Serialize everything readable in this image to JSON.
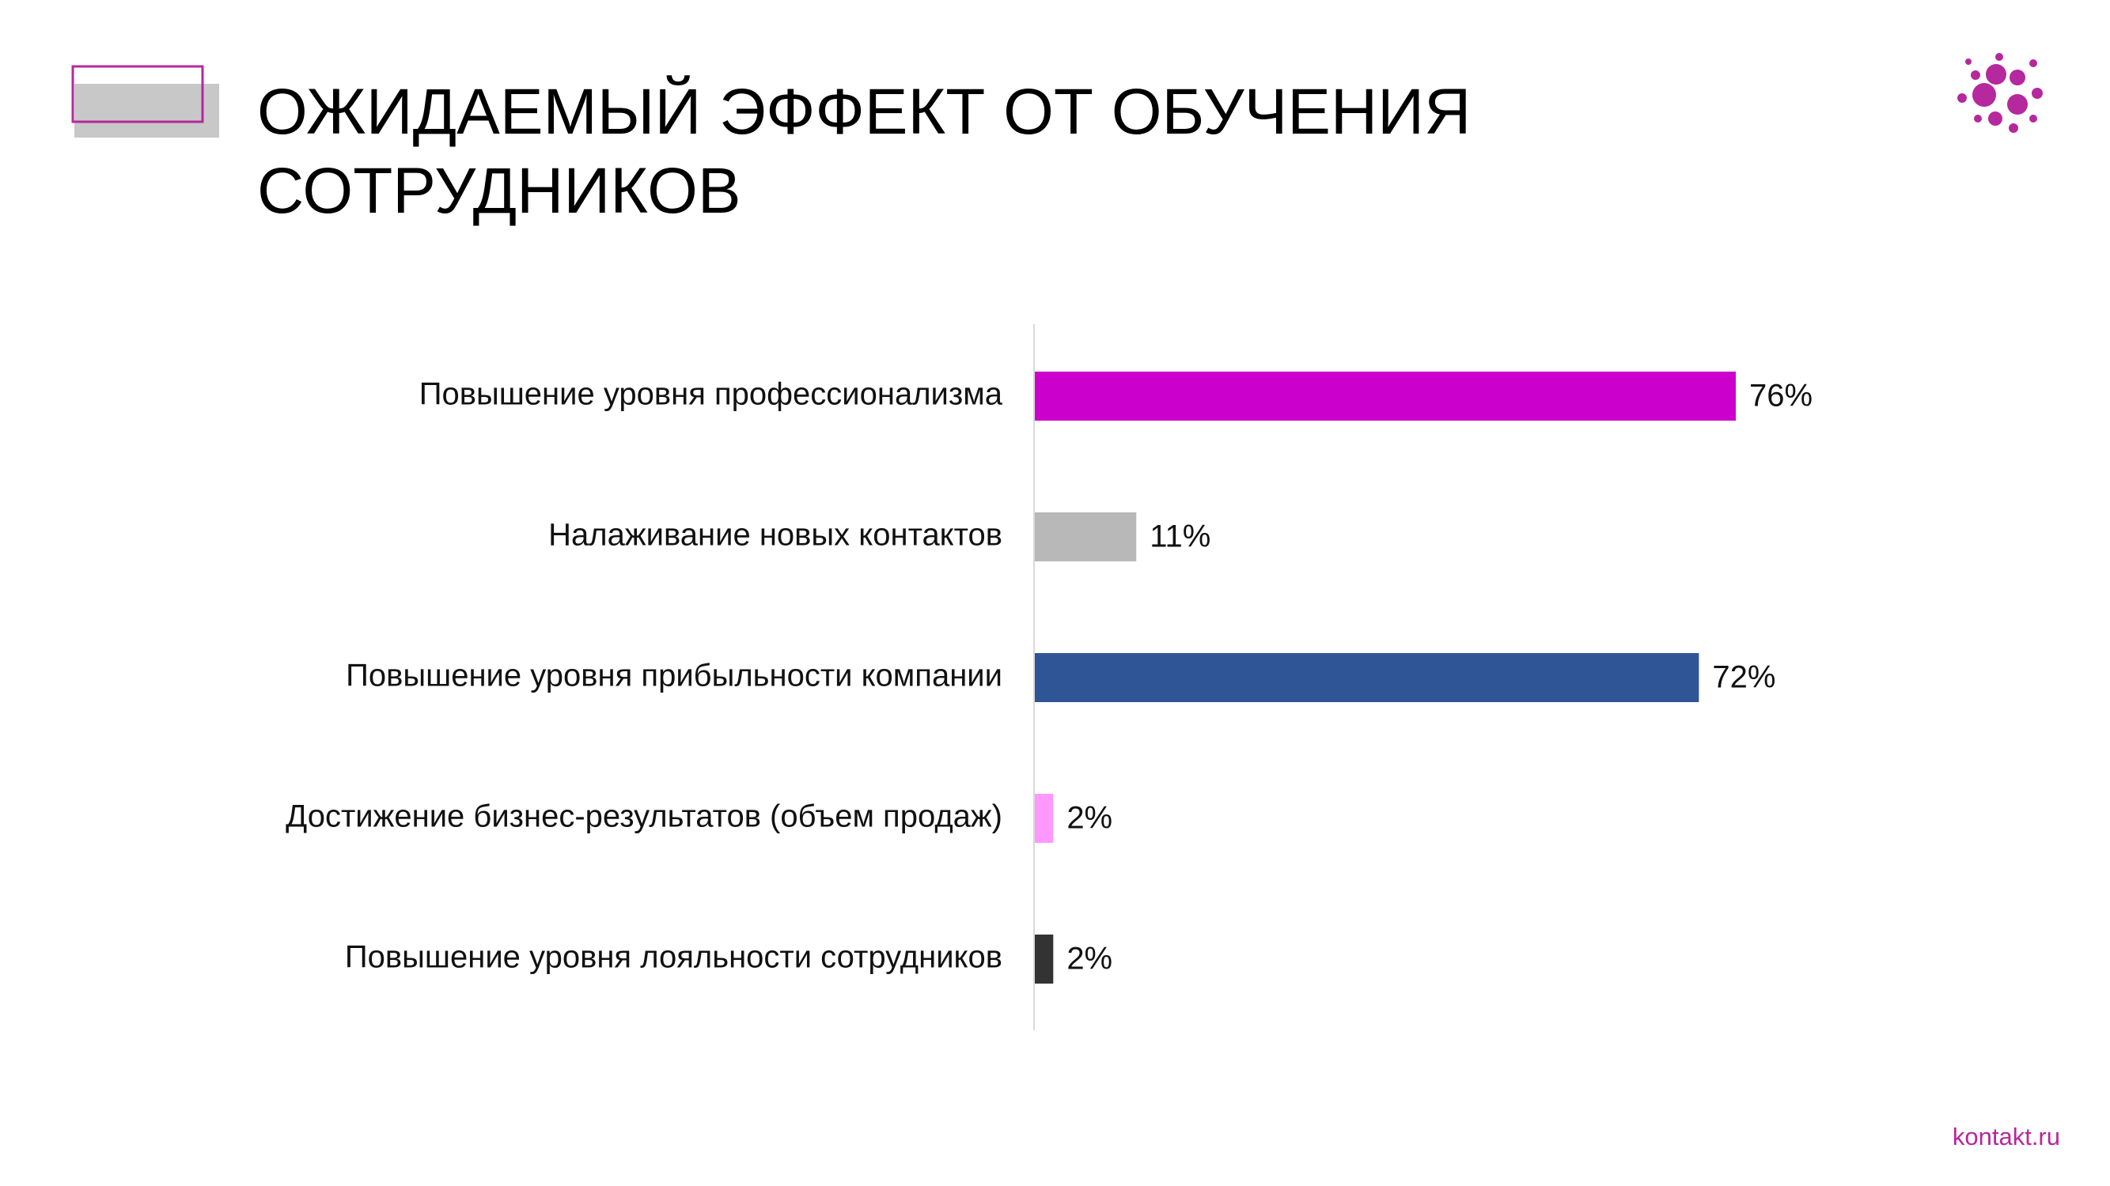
{
  "chart_data": {
    "type": "bar",
    "orientation": "horizontal",
    "title": "ОЖИДАЕМЫЙ ЭФФЕКТ ОТ ОБУЧЕНИЯ СОТРУДНИКОВ",
    "categories": [
      "Повышение уровня профессионализма",
      "Налаживание новых контактов",
      "Повышение уровня прибыльности компании",
      "Достижение бизнес-результатов (объем продаж)",
      "Повышение уровня лояльности сотрудников"
    ],
    "values": [
      76,
      11,
      72,
      2,
      2
    ],
    "value_labels": [
      "76%",
      "11%",
      "72%",
      "2%",
      "2%"
    ],
    "colors": [
      "#cc00cc",
      "#b8b8b8",
      "#2f5597",
      "#ff99ff",
      "#333333"
    ]
  },
  "footer": {
    "link": "kontakt.ru"
  }
}
